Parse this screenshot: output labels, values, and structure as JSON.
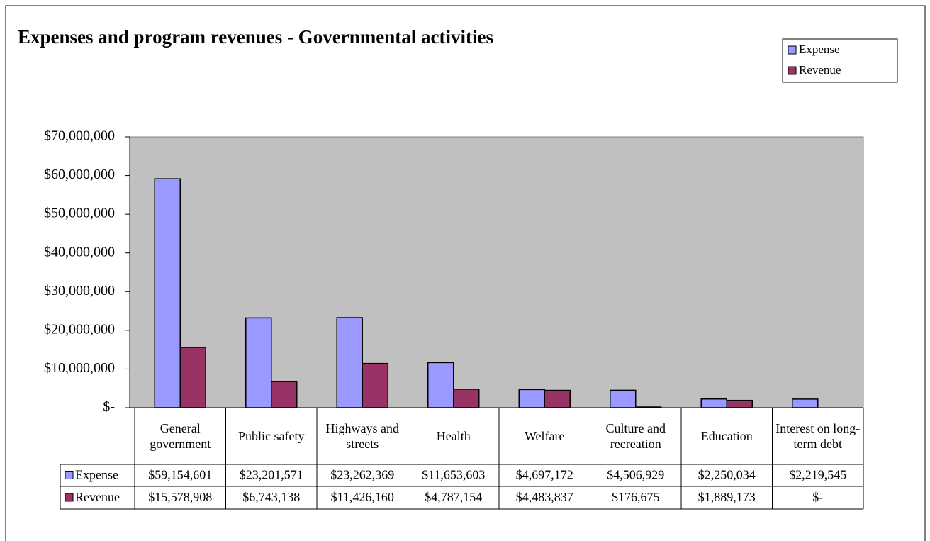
{
  "chart_data": {
    "type": "bar",
    "title": "Expenses and program revenues - Governmental activities",
    "categories": [
      "General government",
      "Public safety",
      "Highways and streets",
      "Health",
      "Welfare",
      "Culture and recreation",
      "Education",
      "Interest on long-term debt"
    ],
    "series": [
      {
        "name": "Expense",
        "color": "#9999ff",
        "values": [
          59154601,
          23201571,
          23262369,
          11653603,
          4697172,
          4506929,
          2250034,
          2219545
        ],
        "value_labels": [
          "$59,154,601",
          "$23,201,571",
          "$23,262,369",
          "$11,653,603",
          "$4,697,172",
          "$4,506,929",
          "$2,250,034",
          "$2,219,545"
        ]
      },
      {
        "name": "Revenue",
        "color": "#993366",
        "values": [
          15578908,
          6743138,
          11426160,
          4787154,
          4483837,
          176675,
          1889173,
          0
        ],
        "value_labels": [
          "$15,578,908",
          "$6,743,138",
          "$11,426,160",
          "$4,787,154",
          "$4,483,837",
          "$176,675",
          "$1,889,173",
          "$-"
        ]
      }
    ],
    "ylim": [
      0,
      70000000
    ],
    "yticks": [
      {
        "value": 0,
        "label": "$-"
      },
      {
        "value": 10000000,
        "label": "$10,000,000"
      },
      {
        "value": 20000000,
        "label": "$20,000,000"
      },
      {
        "value": 30000000,
        "label": "$30,000,000"
      },
      {
        "value": 40000000,
        "label": "$40,000,000"
      },
      {
        "value": 50000000,
        "label": "$50,000,000"
      },
      {
        "value": 60000000,
        "label": "$60,000,000"
      },
      {
        "value": 70000000,
        "label": "$70,000,000"
      }
    ],
    "legend": "top-right",
    "plot_background": "#c0c0c0"
  }
}
